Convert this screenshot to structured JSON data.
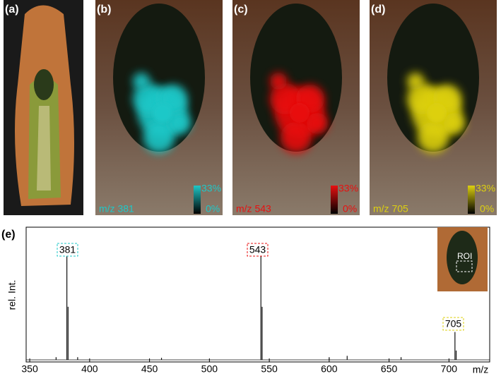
{
  "panels": [
    {
      "label": "(a)"
    },
    {
      "label": "(b)",
      "mz": "m/z 381",
      "color": "#1fc8c8",
      "scale_max": "33%",
      "scale_min": "0%"
    },
    {
      "label": "(c)",
      "mz": "m/z 543",
      "color": "#e81010",
      "scale_max": "33%",
      "scale_min": "0%"
    },
    {
      "label": "(d)",
      "mz": "m/z 705",
      "color": "#ddd010",
      "scale_max": "33%",
      "scale_min": "0%"
    }
  ],
  "chart_data": {
    "type": "stem",
    "panel_label": "(e)",
    "x_label": "m/z",
    "y_label": "rel. Int.",
    "x": [
      381,
      382,
      543,
      544,
      705,
      706,
      372,
      390,
      460,
      600,
      615,
      660
    ],
    "values": [
      82,
      40,
      82,
      40,
      21,
      7,
      2,
      2,
      1.5,
      2,
      3,
      2
    ],
    "color": "#111111",
    "peak_labels": [
      "381",
      "543",
      "705"
    ],
    "peak_label_colors": [
      "#1fc8c8",
      "#e81010",
      "#ddd010"
    ],
    "xlim": [
      347,
      734
    ],
    "xticks": [
      350,
      400,
      450,
      500,
      550,
      600,
      650,
      700
    ],
    "ylim": [
      0,
      100
    ],
    "inset_label": "ROI"
  }
}
